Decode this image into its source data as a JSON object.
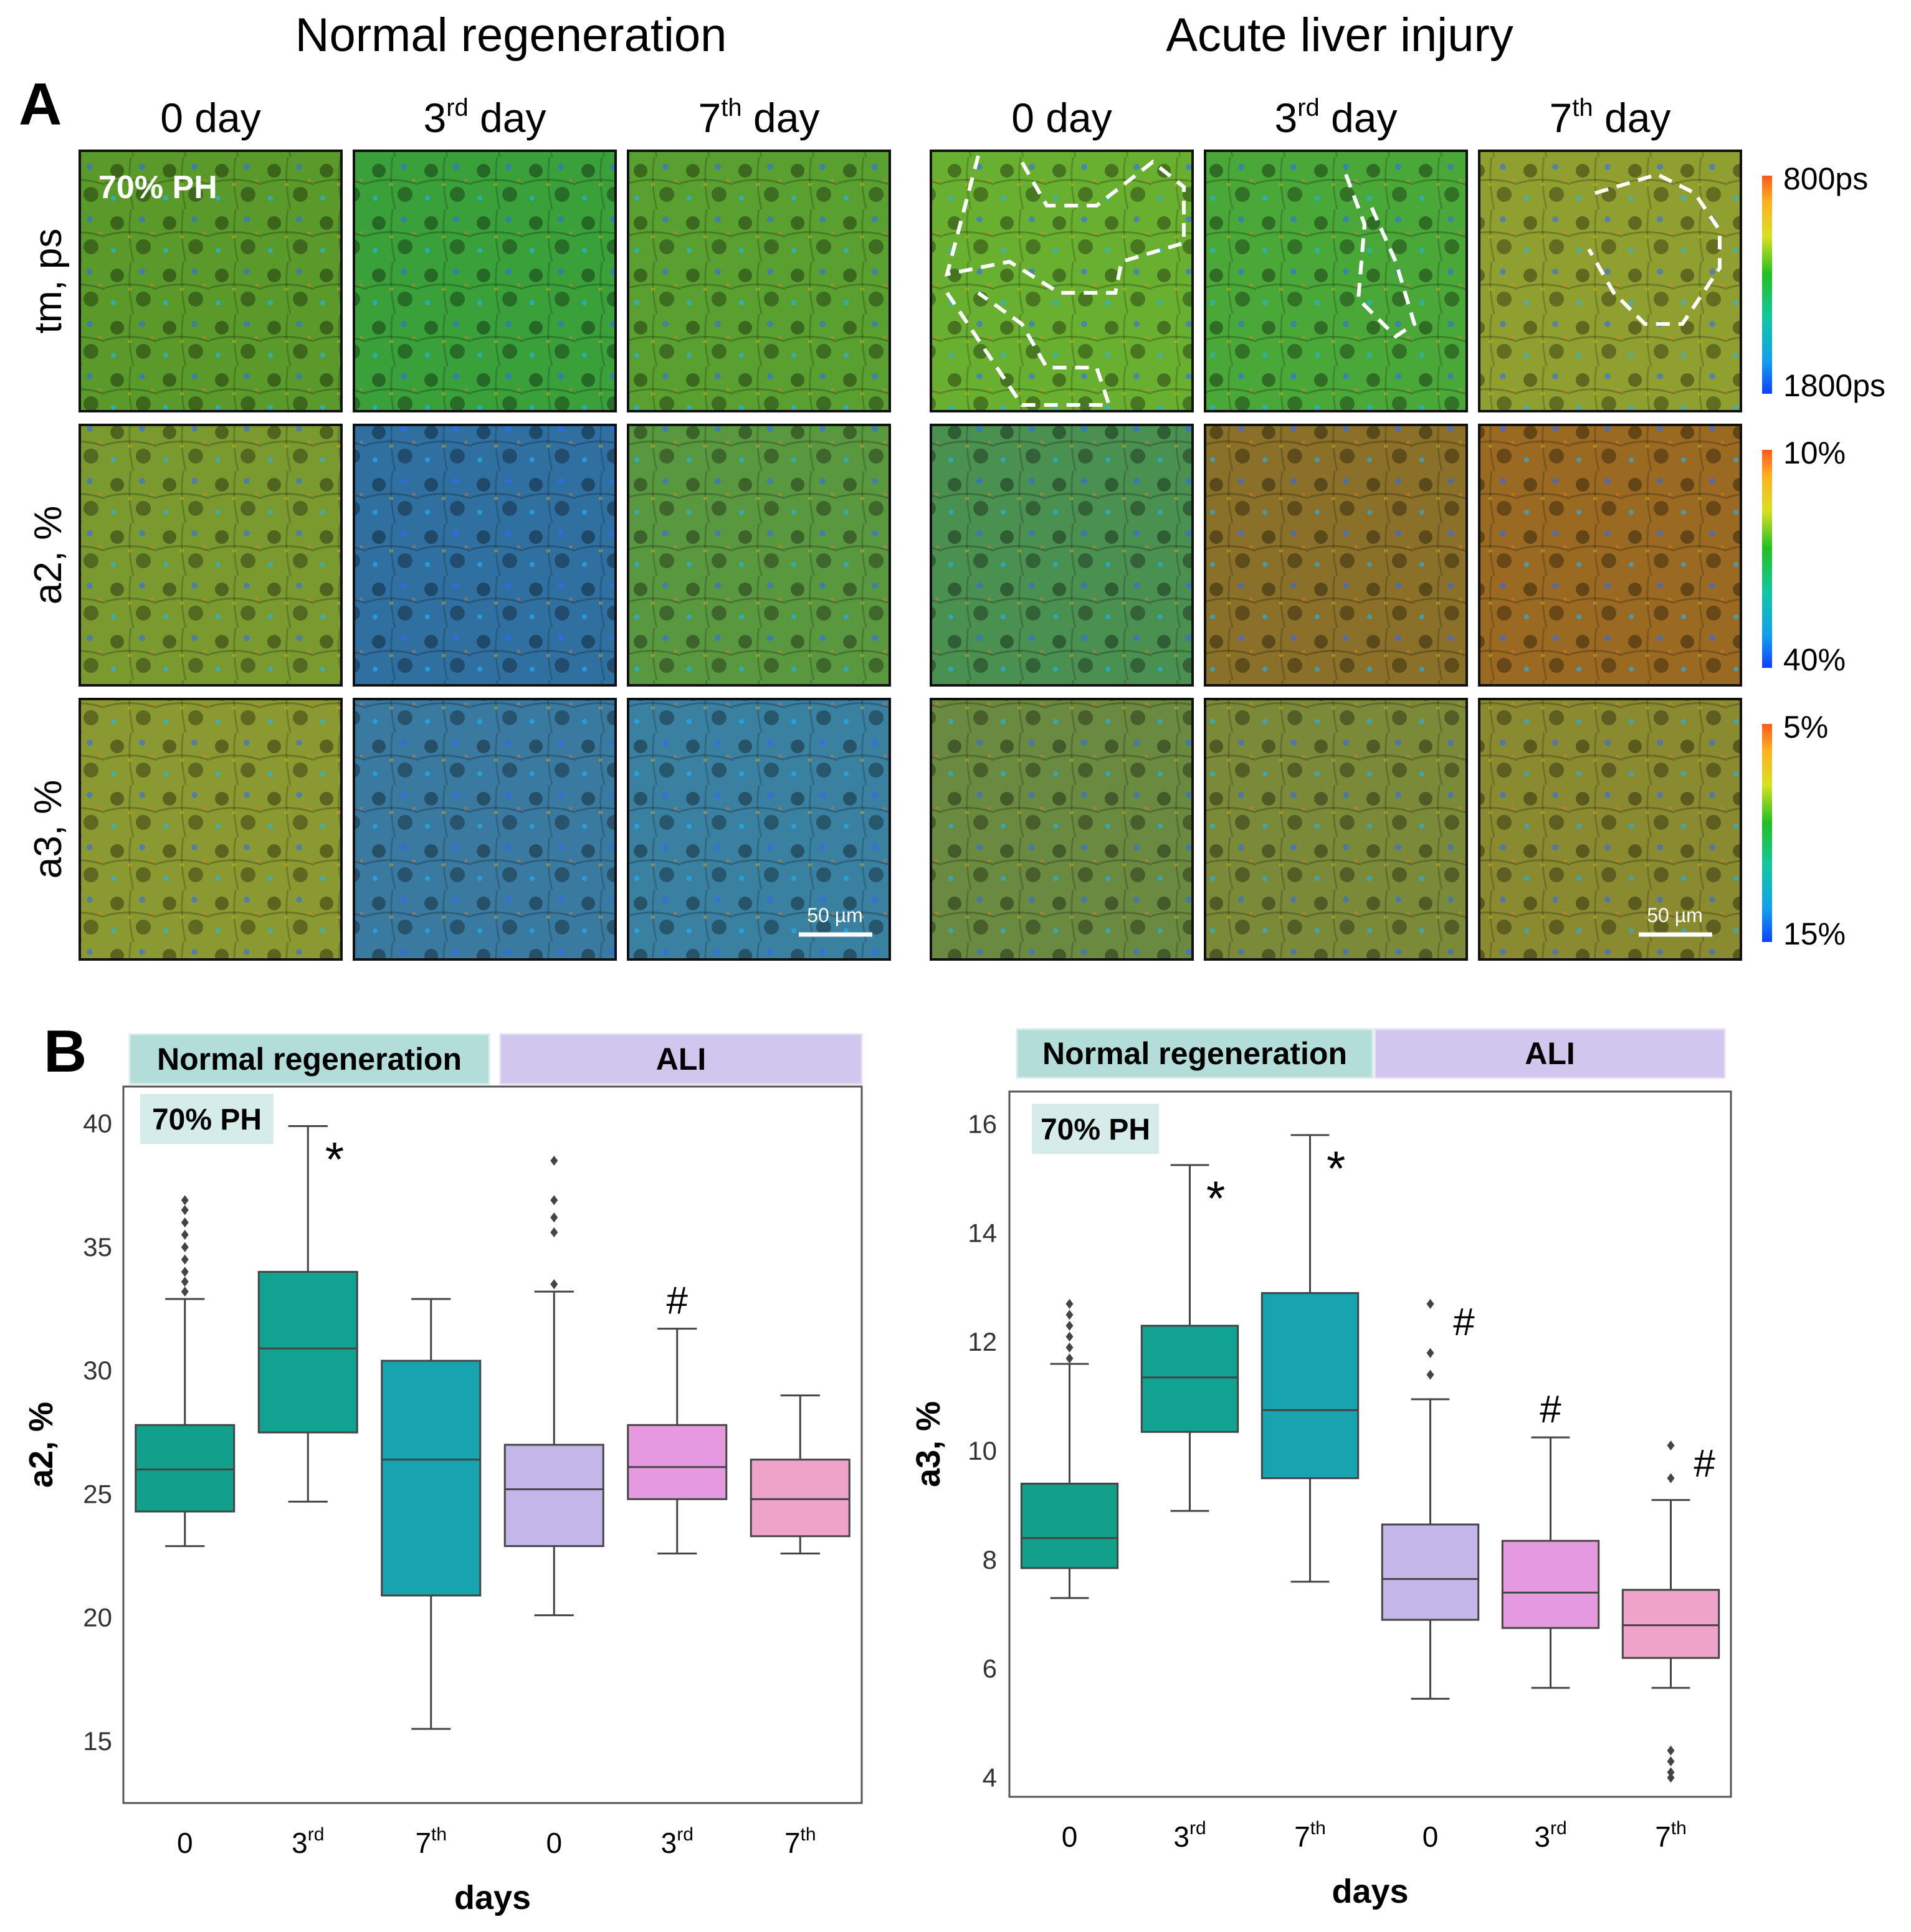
{
  "panel_a": {
    "label": "A",
    "group_titles": [
      "Normal regeneration",
      "Acute liver injury"
    ],
    "column_labels": [
      {
        "main": "0 day",
        "sup": "",
        "suffix": ""
      },
      {
        "main": "3",
        "sup": "rd",
        "suffix": " day"
      },
      {
        "main": "7",
        "sup": "th",
        "suffix": " day"
      },
      {
        "main": "0 day",
        "sup": "",
        "suffix": ""
      },
      {
        "main": "3",
        "sup": "rd",
        "suffix": " day"
      },
      {
        "main": "7",
        "sup": "th",
        "suffix": " day"
      }
    ],
    "row_labels": [
      "tm, ps",
      "a2, %",
      "a3, %"
    ],
    "overlay_label": "70% PH",
    "scale_bar_label": "50 µm",
    "colorbars": [
      {
        "top": "800ps",
        "bottom": "1800ps"
      },
      {
        "top": "10%",
        "bottom": "40%"
      },
      {
        "top": "5%",
        "bottom": "15%"
      }
    ],
    "tile_palettes": [
      [
        "#5a9a2a",
        "#3aa03a",
        "#5aa030",
        "#6ab030",
        "#4aa838",
        "#90a030"
      ],
      [
        "#7a9a30",
        "#3070a0",
        "#5a9840",
        "#4a9050",
        "#8a7028",
        "#9a6a22"
      ],
      [
        "#8a9a30",
        "#3a7aa0",
        "#3a80a0",
        "#6a8a40",
        "#7a8a38",
        "#8a8a30"
      ]
    ]
  },
  "panel_b": {
    "label": "B",
    "header_normal": "Normal regeneration",
    "header_ali": "ALI",
    "badge": "70% PH",
    "colors": {
      "normal_header": "#b2ddd9",
      "ali_header": "#d1c7ee",
      "badge_bg": "#d6ecea",
      "box_colors": [
        "#13a08a",
        "#11a292",
        "#17a3b0",
        "#c4b6e8",
        "#e59ae0",
        "#f0a3c9"
      ]
    }
  },
  "chart_data": [
    {
      "type": "box",
      "title": "",
      "xlabel": "days",
      "ylabel": "a2, %",
      "ylim": [
        12.5,
        41.5
      ],
      "yticks": [
        "15",
        "20",
        "25",
        "30",
        "35",
        "40"
      ],
      "categories": [
        "0",
        "3rd",
        "7th",
        "0",
        "3rd",
        "7th"
      ],
      "groups": [
        "Normal regeneration",
        "Normal regeneration",
        "Normal regeneration",
        "ALI",
        "ALI",
        "ALI"
      ],
      "boxes": [
        {
          "whislo": 22.9,
          "q1": 24.3,
          "med": 26.0,
          "q3": 27.8,
          "whishi": 32.9,
          "fliers": [
            33.2,
            33.6,
            34.0,
            34.5,
            35.0,
            35.5,
            36.0,
            36.5,
            36.9
          ],
          "annotation": ""
        },
        {
          "whislo": 24.7,
          "q1": 27.5,
          "med": 30.9,
          "q3": 34.0,
          "whishi": 39.9,
          "fliers": [],
          "annotation": "*"
        },
        {
          "whislo": 15.5,
          "q1": 20.9,
          "med": 26.4,
          "q3": 30.4,
          "whishi": 32.9,
          "fliers": [],
          "annotation": ""
        },
        {
          "whislo": 20.1,
          "q1": 22.9,
          "med": 25.2,
          "q3": 27.0,
          "whishi": 33.2,
          "fliers": [
            33.5,
            35.6,
            36.2,
            36.9,
            38.5
          ],
          "annotation": ""
        },
        {
          "whislo": 22.6,
          "q1": 24.8,
          "med": 26.1,
          "q3": 27.8,
          "whishi": 31.7,
          "fliers": [],
          "annotation": "#"
        },
        {
          "whislo": 22.6,
          "q1": 23.3,
          "med": 24.8,
          "q3": 26.4,
          "whishi": 29.0,
          "fliers": [],
          "annotation": ""
        }
      ]
    },
    {
      "type": "box",
      "title": "",
      "xlabel": "days",
      "ylabel": "a3, %",
      "ylim": [
        3.65,
        16.6
      ],
      "yticks": [
        "4",
        "6",
        "8",
        "10",
        "12",
        "14",
        "16"
      ],
      "categories": [
        "0",
        "3rd",
        "7th",
        "0",
        "3rd",
        "7th"
      ],
      "groups": [
        "Normal regeneration",
        "Normal regeneration",
        "Normal regeneration",
        "ALI",
        "ALI",
        "ALI"
      ],
      "boxes": [
        {
          "whislo": 7.3,
          "q1": 7.85,
          "med": 8.4,
          "q3": 9.4,
          "whishi": 11.6,
          "fliers": [
            11.7,
            11.9,
            12.1,
            12.3,
            12.5,
            12.7
          ],
          "annotation": ""
        },
        {
          "whislo": 8.9,
          "q1": 10.35,
          "med": 11.35,
          "q3": 12.3,
          "whishi": 15.25,
          "fliers": [],
          "annotation": "*"
        },
        {
          "whislo": 7.6,
          "q1": 9.5,
          "med": 10.75,
          "q3": 12.9,
          "whishi": 15.8,
          "fliers": [],
          "annotation": "*"
        },
        {
          "whislo": 5.45,
          "q1": 6.9,
          "med": 7.65,
          "q3": 8.65,
          "whishi": 10.95,
          "fliers": [
            11.4,
            11.8,
            12.7
          ],
          "annotation": "#"
        },
        {
          "whislo": 5.65,
          "q1": 6.75,
          "med": 7.4,
          "q3": 8.35,
          "whishi": 10.25,
          "fliers": [],
          "annotation": "#"
        },
        {
          "whislo": 5.65,
          "q1": 6.2,
          "med": 6.8,
          "q3": 7.45,
          "whishi": 9.1,
          "fliers": [
            4.0,
            4.1,
            4.3,
            4.5,
            9.5,
            10.1
          ],
          "annotation": "#"
        }
      ]
    }
  ]
}
